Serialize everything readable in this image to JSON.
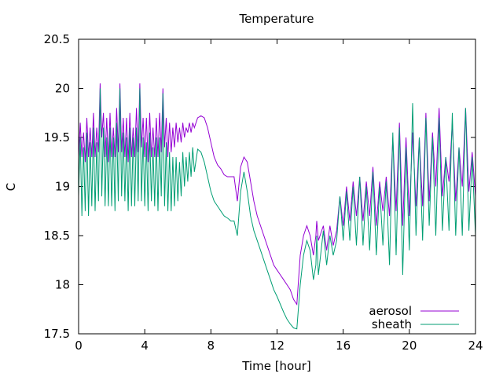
{
  "chart_data": {
    "type": "line",
    "title": "Temperature",
    "xlabel": "Time [hour]",
    "ylabel": "C",
    "xlim": [
      0,
      24
    ],
    "ylim": [
      17.5,
      20.5
    ],
    "xticks": [
      0,
      4,
      8,
      12,
      16,
      20,
      24
    ],
    "yticks": [
      17.5,
      18,
      18.5,
      19,
      19.5,
      20,
      20.5
    ],
    "xtick_labels": [
      "0",
      "4",
      "8",
      "12",
      "16",
      "20",
      "24"
    ],
    "ytick_labels": [
      "17.5",
      "18",
      "18.5",
      "19",
      "19.5",
      "20",
      "20.5"
    ],
    "grid": false,
    "legend_position": "bottom-right",
    "series": [
      {
        "name": "aerosol",
        "color": "#9400d3",
        "x": [
          0.0,
          0.1,
          0.2,
          0.3,
          0.4,
          0.5,
          0.6,
          0.7,
          0.8,
          0.9,
          1.0,
          1.1,
          1.2,
          1.3,
          1.4,
          1.5,
          1.6,
          1.7,
          1.8,
          1.9,
          2.0,
          2.1,
          2.2,
          2.3,
          2.4,
          2.5,
          2.6,
          2.7,
          2.8,
          2.9,
          3.0,
          3.1,
          3.2,
          3.3,
          3.4,
          3.5,
          3.6,
          3.7,
          3.8,
          3.9,
          4.0,
          4.1,
          4.2,
          4.3,
          4.4,
          4.5,
          4.6,
          4.7,
          4.8,
          4.9,
          5.0,
          5.1,
          5.2,
          5.3,
          5.4,
          5.5,
          5.6,
          5.7,
          5.8,
          5.9,
          6.0,
          6.1,
          6.2,
          6.3,
          6.4,
          6.5,
          6.6,
          6.7,
          6.8,
          6.9,
          7.0,
          7.2,
          7.4,
          7.6,
          7.8,
          8.0,
          8.2,
          8.4,
          8.6,
          8.8,
          9.0,
          9.2,
          9.4,
          9.6,
          9.8,
          10.0,
          10.2,
          10.4,
          10.6,
          10.8,
          11.0,
          11.2,
          11.4,
          11.6,
          11.8,
          12.0,
          12.2,
          12.4,
          12.6,
          12.8,
          13.0,
          13.2,
          13.4,
          13.6,
          13.8,
          14.0,
          14.2,
          14.35,
          14.4,
          14.5,
          14.6,
          14.8,
          15.0,
          15.2,
          15.4,
          15.6,
          15.8,
          16.0,
          16.2,
          16.4,
          16.6,
          16.8,
          17.0,
          17.2,
          17.4,
          17.6,
          17.8,
          18.0,
          18.2,
          18.4,
          18.6,
          18.8,
          19.0,
          19.2,
          19.4,
          19.6,
          19.8,
          20.0,
          20.2,
          20.4,
          20.6,
          20.8,
          21.0,
          21.2,
          21.4,
          21.6,
          21.8,
          22.0,
          22.2,
          22.4,
          22.6,
          22.8,
          23.0,
          23.2,
          23.4,
          23.6,
          23.8,
          24.0
        ],
        "y": [
          19.3,
          19.65,
          19.3,
          19.55,
          19.25,
          19.7,
          19.3,
          19.6,
          19.3,
          19.75,
          19.3,
          19.6,
          19.35,
          20.05,
          19.5,
          19.75,
          19.3,
          19.7,
          19.25,
          19.75,
          19.3,
          19.6,
          19.3,
          19.8,
          19.35,
          20.05,
          19.35,
          19.7,
          19.3,
          19.7,
          19.25,
          19.75,
          19.3,
          19.6,
          19.3,
          19.8,
          19.35,
          20.05,
          19.4,
          19.7,
          19.3,
          19.7,
          19.25,
          19.75,
          19.3,
          19.6,
          19.3,
          19.7,
          19.3,
          19.75,
          19.35,
          20.0,
          19.4,
          19.7,
          19.3,
          19.65,
          19.35,
          19.6,
          19.4,
          19.65,
          19.45,
          19.6,
          19.45,
          19.65,
          19.5,
          19.6,
          19.55,
          19.65,
          19.55,
          19.65,
          19.6,
          19.7,
          19.72,
          19.7,
          19.6,
          19.45,
          19.3,
          19.22,
          19.18,
          19.12,
          19.1,
          19.1,
          19.1,
          18.85,
          19.2,
          19.3,
          19.25,
          19.05,
          18.85,
          18.7,
          18.6,
          18.5,
          18.4,
          18.3,
          18.2,
          18.15,
          18.1,
          18.05,
          18.0,
          17.95,
          17.85,
          17.8,
          18.3,
          18.5,
          18.6,
          18.5,
          18.3,
          18.5,
          18.65,
          18.45,
          18.5,
          18.6,
          18.35,
          18.6,
          18.4,
          18.55,
          18.9,
          18.6,
          19.0,
          18.65,
          19.05,
          18.7,
          19.1,
          18.65,
          19.05,
          18.7,
          19.2,
          18.6,
          19.05,
          18.75,
          19.1,
          18.7,
          19.5,
          18.75,
          19.65,
          18.6,
          19.5,
          18.7,
          19.55,
          18.8,
          19.5,
          18.8,
          19.75,
          18.85,
          19.55,
          19.0,
          19.8,
          18.9,
          19.3,
          19.05,
          19.65,
          18.85,
          19.4,
          19.0,
          19.8,
          18.95,
          19.35,
          18.9
        ]
      },
      {
        "name": "sheath",
        "color": "#009e73",
        "x": [
          0.0,
          0.1,
          0.2,
          0.3,
          0.4,
          0.5,
          0.6,
          0.7,
          0.8,
          0.9,
          1.0,
          1.1,
          1.2,
          1.3,
          1.4,
          1.5,
          1.6,
          1.7,
          1.8,
          1.9,
          2.0,
          2.1,
          2.2,
          2.3,
          2.4,
          2.5,
          2.6,
          2.7,
          2.8,
          2.9,
          3.0,
          3.1,
          3.2,
          3.3,
          3.4,
          3.5,
          3.6,
          3.7,
          3.8,
          3.9,
          4.0,
          4.1,
          4.2,
          4.3,
          4.4,
          4.5,
          4.6,
          4.7,
          4.8,
          4.9,
          5.0,
          5.1,
          5.2,
          5.3,
          5.4,
          5.5,
          5.6,
          5.7,
          5.8,
          5.9,
          6.0,
          6.1,
          6.2,
          6.3,
          6.4,
          6.5,
          6.6,
          6.7,
          6.8,
          6.9,
          7.0,
          7.2,
          7.4,
          7.6,
          7.8,
          8.0,
          8.2,
          8.4,
          8.6,
          8.8,
          9.0,
          9.2,
          9.4,
          9.6,
          9.8,
          10.0,
          10.2,
          10.4,
          10.6,
          10.8,
          11.0,
          11.2,
          11.4,
          11.6,
          11.8,
          12.0,
          12.2,
          12.4,
          12.6,
          12.8,
          13.0,
          13.2,
          13.4,
          13.6,
          13.8,
          14.0,
          14.2,
          14.35,
          14.4,
          14.5,
          14.6,
          14.8,
          15.0,
          15.2,
          15.4,
          15.6,
          15.8,
          16.0,
          16.2,
          16.4,
          16.6,
          16.8,
          17.0,
          17.2,
          17.4,
          17.6,
          17.8,
          18.0,
          18.2,
          18.4,
          18.6,
          18.8,
          19.0,
          19.2,
          19.4,
          19.6,
          19.8,
          20.0,
          20.2,
          20.4,
          20.6,
          20.8,
          21.0,
          21.2,
          21.4,
          21.6,
          21.8,
          22.0,
          22.2,
          22.4,
          22.6,
          22.8,
          23.0,
          23.2,
          23.4,
          23.6,
          23.8,
          24.0
        ],
        "y": [
          18.9,
          19.5,
          18.7,
          19.4,
          18.75,
          19.55,
          18.7,
          19.45,
          18.8,
          19.6,
          18.75,
          19.45,
          18.85,
          20.0,
          18.9,
          19.6,
          18.8,
          19.5,
          18.8,
          19.6,
          18.8,
          19.5,
          18.75,
          19.65,
          18.85,
          20.0,
          18.9,
          19.55,
          18.85,
          19.5,
          18.75,
          19.6,
          18.8,
          19.5,
          18.8,
          19.6,
          18.85,
          20.0,
          18.85,
          19.5,
          18.8,
          19.45,
          18.75,
          19.55,
          18.85,
          19.4,
          18.8,
          19.5,
          18.75,
          19.5,
          18.9,
          19.95,
          18.8,
          19.45,
          18.75,
          19.35,
          18.75,
          19.3,
          18.8,
          19.3,
          18.85,
          19.25,
          18.9,
          19.35,
          19.0,
          19.3,
          19.05,
          19.35,
          19.1,
          19.4,
          19.15,
          19.38,
          19.35,
          19.25,
          19.1,
          18.95,
          18.85,
          18.8,
          18.75,
          18.7,
          18.68,
          18.65,
          18.65,
          18.5,
          18.95,
          19.15,
          18.95,
          18.7,
          18.55,
          18.45,
          18.35,
          18.25,
          18.15,
          18.05,
          17.95,
          17.88,
          17.8,
          17.72,
          17.65,
          17.6,
          17.56,
          17.55,
          18.0,
          18.3,
          18.45,
          18.35,
          18.05,
          18.2,
          18.5,
          18.1,
          18.25,
          18.55,
          18.2,
          18.5,
          18.3,
          18.45,
          18.9,
          18.45,
          18.95,
          18.45,
          19.0,
          18.4,
          19.1,
          18.4,
          19.0,
          18.35,
          19.15,
          18.3,
          19.0,
          18.4,
          19.05,
          18.2,
          19.55,
          18.3,
          19.6,
          18.1,
          19.4,
          18.35,
          19.85,
          18.5,
          19.5,
          18.45,
          19.7,
          18.6,
          19.5,
          18.5,
          19.7,
          18.55,
          19.3,
          18.55,
          19.75,
          18.5,
          19.4,
          18.5,
          19.8,
          18.55,
          19.3,
          18.5
        ]
      }
    ]
  }
}
